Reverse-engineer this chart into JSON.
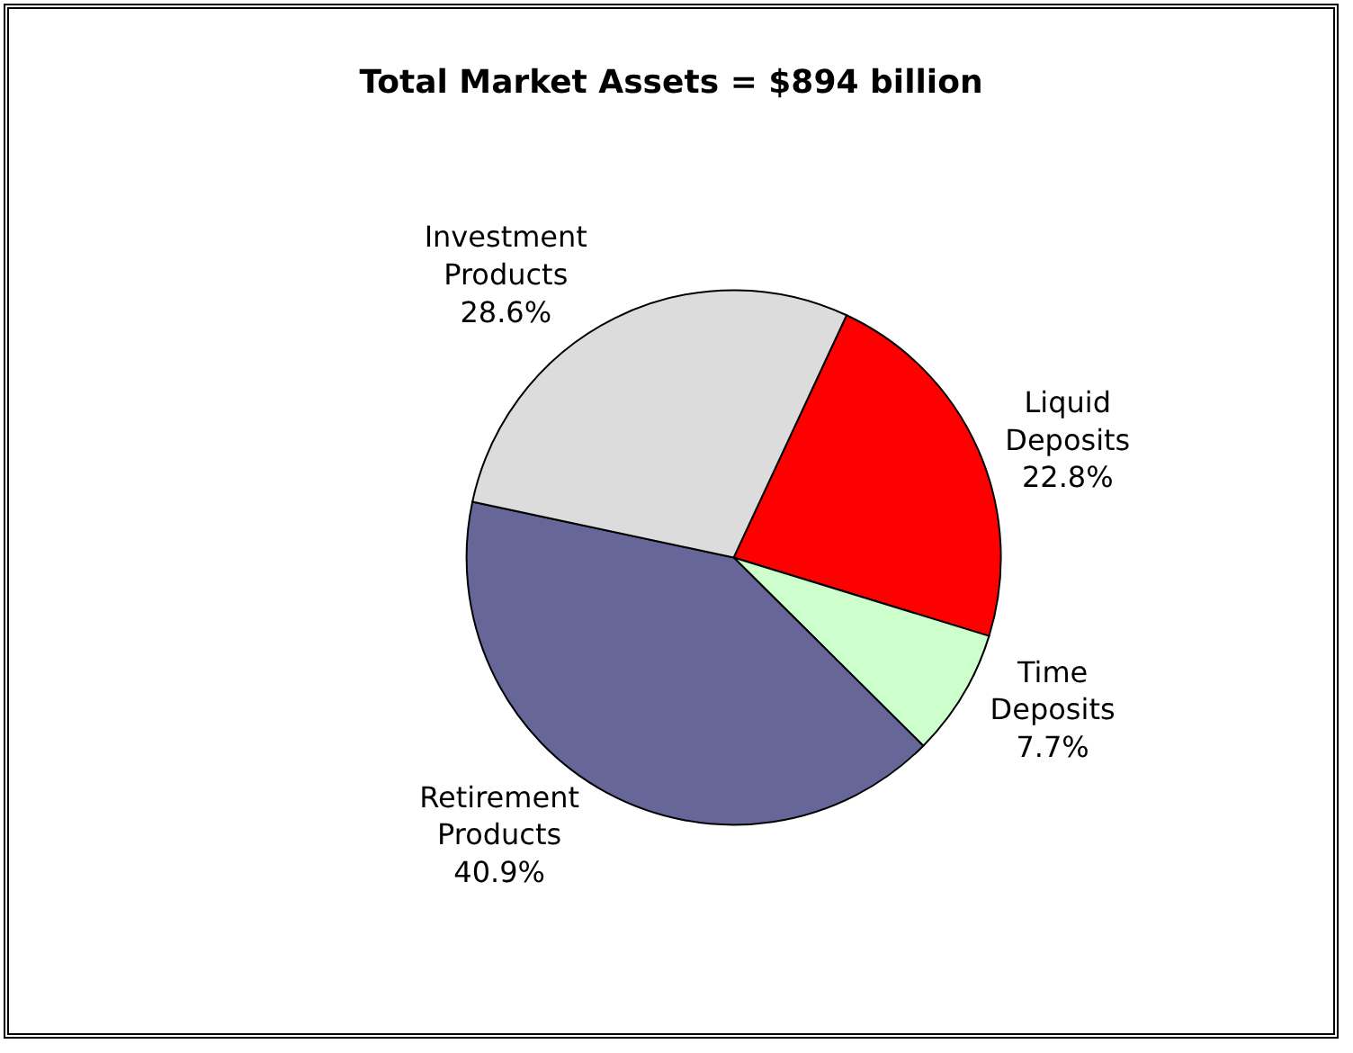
{
  "chart_data": {
    "type": "pie",
    "title": "Total Market Assets = $894 billion",
    "categories": [
      "Liquid Deposits",
      "Time Deposits",
      "Retirement Products",
      "Investment Products"
    ],
    "values": [
      22.8,
      7.7,
      40.9,
      28.6
    ],
    "colors": [
      "#ff0000",
      "#ccffcc",
      "#666699",
      "#dcdcdc"
    ],
    "value_labels": [
      "22.8%",
      "7.7%",
      "40.9%",
      "28.6%"
    ],
    "legend": false
  }
}
